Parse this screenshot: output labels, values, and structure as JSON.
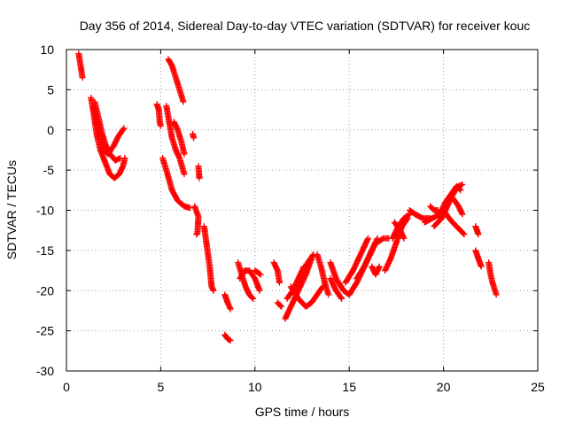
{
  "chart_data": {
    "type": "scatter",
    "title": "Day 356 of 2014, Sidereal Day-to-day VTEC variation (SDTVAR) for receiver kouc",
    "xlabel": "GPS time / hours",
    "ylabel": "SDTVAR / TECUs",
    "xlim": [
      0,
      25
    ],
    "ylim": [
      -30,
      10
    ],
    "xticks": [
      0,
      5,
      10,
      15,
      20,
      25
    ],
    "yticks": [
      -30,
      -25,
      -20,
      -15,
      -10,
      -5,
      0,
      5,
      10
    ],
    "grid": true,
    "marker": "+",
    "series": [
      {
        "name": "SDTVAR",
        "color": "#ff0000",
        "segments": [
          [
            [
              0.65,
              9.5
            ],
            [
              0.75,
              8.0
            ],
            [
              0.85,
              6.5
            ]
          ],
          [
            [
              1.3,
              4.0
            ],
            [
              1.45,
              2.0
            ],
            [
              1.6,
              -0.5
            ],
            [
              1.8,
              -2.5
            ],
            [
              2.05,
              -4.0
            ],
            [
              2.3,
              -5.5
            ],
            [
              2.55,
              -6.0
            ],
            [
              2.8,
              -5.5
            ],
            [
              3.0,
              -4.5
            ],
            [
              3.1,
              -3.5
            ]
          ],
          [
            [
              1.4,
              3.0
            ],
            [
              1.6,
              1.0
            ],
            [
              1.8,
              -1.0
            ],
            [
              2.0,
              -2.5
            ],
            [
              2.2,
              -3.0
            ],
            [
              2.5,
              -2.0
            ],
            [
              2.75,
              -0.8
            ],
            [
              3.05,
              0.2
            ]
          ],
          [
            [
              1.5,
              3.5
            ],
            [
              1.7,
              1.5
            ],
            [
              1.9,
              -0.5
            ],
            [
              2.1,
              -2.0
            ],
            [
              2.3,
              -3.0
            ],
            [
              2.6,
              -3.8
            ],
            [
              2.85,
              -3.5
            ]
          ],
          [
            [
              4.8,
              3.2
            ],
            [
              4.9,
              2.5
            ],
            [
              4.95,
              1.0
            ],
            [
              5.0,
              0.5
            ]
          ],
          [
            [
              5.1,
              -3.5
            ],
            [
              5.3,
              -5.0
            ],
            [
              5.6,
              -7.5
            ],
            [
              5.9,
              -8.8
            ],
            [
              6.25,
              -9.5
            ],
            [
              6.55,
              -9.7
            ]
          ],
          [
            [
              5.4,
              8.8
            ],
            [
              5.6,
              8.0
            ],
            [
              5.8,
              6.5
            ],
            [
              6.0,
              5.0
            ],
            [
              6.2,
              3.5
            ]
          ],
          [
            [
              5.3,
              3.0
            ],
            [
              5.45,
              1.0
            ],
            [
              5.6,
              -1.0
            ],
            [
              5.8,
              -2.5
            ],
            [
              6.0,
              -3.5
            ],
            [
              6.25,
              -5.5
            ]
          ],
          [
            [
              5.7,
              1.0
            ],
            [
              5.9,
              0.0
            ],
            [
              6.1,
              -1.5
            ],
            [
              6.25,
              -3.0
            ]
          ],
          [
            [
              6.7,
              -0.5
            ],
            [
              6.75,
              -1.0
            ]
          ],
          [
            [
              7.0,
              -4.5
            ],
            [
              7.05,
              -6.0
            ]
          ],
          [
            [
              6.8,
              -9.5
            ],
            [
              7.0,
              -10.8
            ],
            [
              6.95,
              -12.8
            ],
            [
              6.9,
              -13.0
            ]
          ],
          [
            [
              7.3,
              -12.0
            ],
            [
              7.45,
              -14.5
            ],
            [
              7.6,
              -17.0
            ],
            [
              7.7,
              -19.5
            ],
            [
              7.8,
              -20.0
            ]
          ],
          [
            [
              8.4,
              -20.5
            ],
            [
              8.55,
              -21.5
            ],
            [
              8.7,
              -22.3
            ]
          ],
          [
            [
              8.4,
              -25.5
            ],
            [
              8.55,
              -26.0
            ],
            [
              8.7,
              -26.2
            ]
          ],
          [
            [
              9.1,
              -16.5
            ],
            [
              9.3,
              -18.0
            ],
            [
              9.5,
              -19.5
            ],
            [
              9.7,
              -20.5
            ],
            [
              9.9,
              -21.0
            ]
          ],
          [
            [
              9.2,
              -18.5
            ],
            [
              9.45,
              -17.5
            ],
            [
              9.7,
              -17.5
            ],
            [
              10.0,
              -18.5
            ],
            [
              10.25,
              -20.0
            ]
          ],
          [
            [
              10.0,
              -17.5
            ],
            [
              10.3,
              -18.0
            ]
          ],
          [
            [
              11.0,
              -16.5
            ],
            [
              11.2,
              -17.5
            ],
            [
              11.3,
              -19.0
            ]
          ],
          [
            [
              11.2,
              -21.5
            ],
            [
              11.4,
              -22.0
            ]
          ],
          [
            [
              11.6,
              -23.5
            ],
            [
              11.9,
              -22.0
            ],
            [
              12.3,
              -20.0
            ],
            [
              12.7,
              -18.0
            ],
            [
              13.0,
              -16.0
            ]
          ],
          [
            [
              11.7,
              -21.0
            ],
            [
              12.0,
              -20.0
            ],
            [
              12.3,
              -18.5
            ],
            [
              12.6,
              -17.0
            ]
          ],
          [
            [
              12.2,
              -19.5
            ],
            [
              12.5,
              -18.0
            ],
            [
              12.8,
              -16.5
            ],
            [
              13.1,
              -15.5
            ]
          ],
          [
            [
              11.9,
              -19.5
            ],
            [
              12.3,
              -21.0
            ],
            [
              12.7,
              -22.0
            ],
            [
              13.0,
              -21.5
            ],
            [
              13.3,
              -20.5
            ],
            [
              13.6,
              -19.5
            ]
          ],
          [
            [
              13.5,
              -17.0
            ],
            [
              13.7,
              -19.0
            ],
            [
              13.9,
              -20.5
            ]
          ],
          [
            [
              13.3,
              -15.5
            ],
            [
              13.5,
              -17.0
            ]
          ],
          [
            [
              14.0,
              -16.5
            ],
            [
              14.3,
              -18.5
            ],
            [
              14.7,
              -20.0
            ],
            [
              15.0,
              -20.5
            ]
          ],
          [
            [
              14.0,
              -18.5
            ],
            [
              14.3,
              -20.0
            ],
            [
              14.6,
              -21.0
            ]
          ],
          [
            [
              14.8,
              -19.0
            ],
            [
              15.2,
              -17.5
            ],
            [
              15.5,
              -16.0
            ],
            [
              15.8,
              -14.5
            ],
            [
              16.0,
              -13.5
            ]
          ],
          [
            [
              15.0,
              -20.5
            ],
            [
              15.4,
              -19.0
            ],
            [
              15.8,
              -17.0
            ],
            [
              16.1,
              -15.5
            ],
            [
              16.4,
              -14.0
            ]
          ],
          [
            [
              15.4,
              -18.5
            ],
            [
              15.8,
              -17.0
            ],
            [
              16.2,
              -15.0
            ],
            [
              16.5,
              -13.5
            ]
          ],
          [
            [
              16.2,
              -17.0
            ],
            [
              16.4,
              -18.0
            ],
            [
              16.6,
              -17.0
            ]
          ],
          [
            [
              16.5,
              -14.0
            ],
            [
              16.8,
              -13.5
            ],
            [
              17.1,
              -13.5
            ]
          ],
          [
            [
              16.9,
              -17.5
            ],
            [
              17.2,
              -16.0
            ],
            [
              17.5,
              -14.0
            ],
            [
              17.8,
              -12.0
            ],
            [
              18.1,
              -11.0
            ]
          ],
          [
            [
              17.3,
              -13.5
            ],
            [
              17.6,
              -12.0
            ],
            [
              17.9,
              -11.0
            ],
            [
              18.2,
              -10.5
            ]
          ],
          [
            [
              17.4,
              -11.5
            ],
            [
              17.7,
              -12.5
            ],
            [
              17.9,
              -13.5
            ]
          ],
          [
            [
              18.2,
              -10.0
            ],
            [
              18.5,
              -10.5
            ],
            [
              18.9,
              -11.0
            ],
            [
              19.3,
              -11.0
            ]
          ],
          [
            [
              19.0,
              -11.5
            ],
            [
              19.4,
              -11.0
            ],
            [
              19.8,
              -10.5
            ],
            [
              20.1,
              -10.0
            ]
          ],
          [
            [
              19.3,
              -9.5
            ],
            [
              19.5,
              -10.0
            ],
            [
              19.7,
              -10.0
            ]
          ],
          [
            [
              19.5,
              -12.0
            ],
            [
              19.9,
              -11.0
            ],
            [
              20.2,
              -9.5
            ],
            [
              20.5,
              -8.0
            ],
            [
              20.8,
              -7.0
            ],
            [
              21.0,
              -6.8
            ]
          ],
          [
            [
              19.8,
              -10.5
            ],
            [
              20.1,
              -9.0
            ],
            [
              20.4,
              -8.0
            ],
            [
              20.7,
              -7.0
            ],
            [
              20.9,
              -7.5
            ]
          ],
          [
            [
              20.0,
              -10.0
            ],
            [
              20.3,
              -11.0
            ],
            [
              20.6,
              -11.8
            ],
            [
              20.9,
              -12.5
            ],
            [
              21.1,
              -13.0
            ]
          ],
          [
            [
              20.5,
              -8.5
            ],
            [
              20.8,
              -9.5
            ],
            [
              21.0,
              -10.5
            ]
          ],
          [
            [
              21.7,
              -12.0
            ],
            [
              21.85,
              -13.0
            ]
          ],
          [
            [
              21.7,
              -15.0
            ],
            [
              21.85,
              -16.0
            ],
            [
              22.0,
              -17.0
            ]
          ],
          [
            [
              22.4,
              -16.5
            ],
            [
              22.5,
              -18.0
            ],
            [
              22.6,
              -19.0
            ],
            [
              22.8,
              -20.5
            ]
          ]
        ]
      }
    ]
  }
}
